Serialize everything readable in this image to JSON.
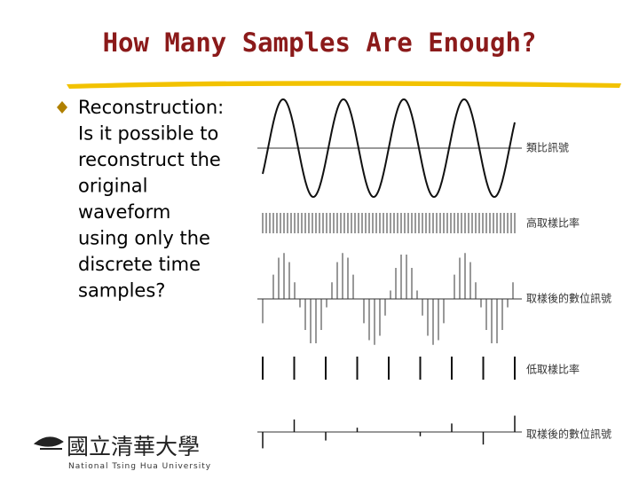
{
  "title": "How Many Samples Are Enough?",
  "bullet": {
    "lines": [
      "Reconstruction:",
      "Is it possible to",
      "reconstruct the",
      "original",
      "waveform",
      "using only the",
      "discrete time",
      "samples?"
    ]
  },
  "figure": {
    "labels": [
      "類比訊號",
      "高取樣比率",
      "取樣後的數位訊號",
      "低取樣比率",
      "取樣後的數位訊號"
    ]
  },
  "logo": {
    "name": "國立清華大學",
    "english": "National Tsing Hua University"
  }
}
